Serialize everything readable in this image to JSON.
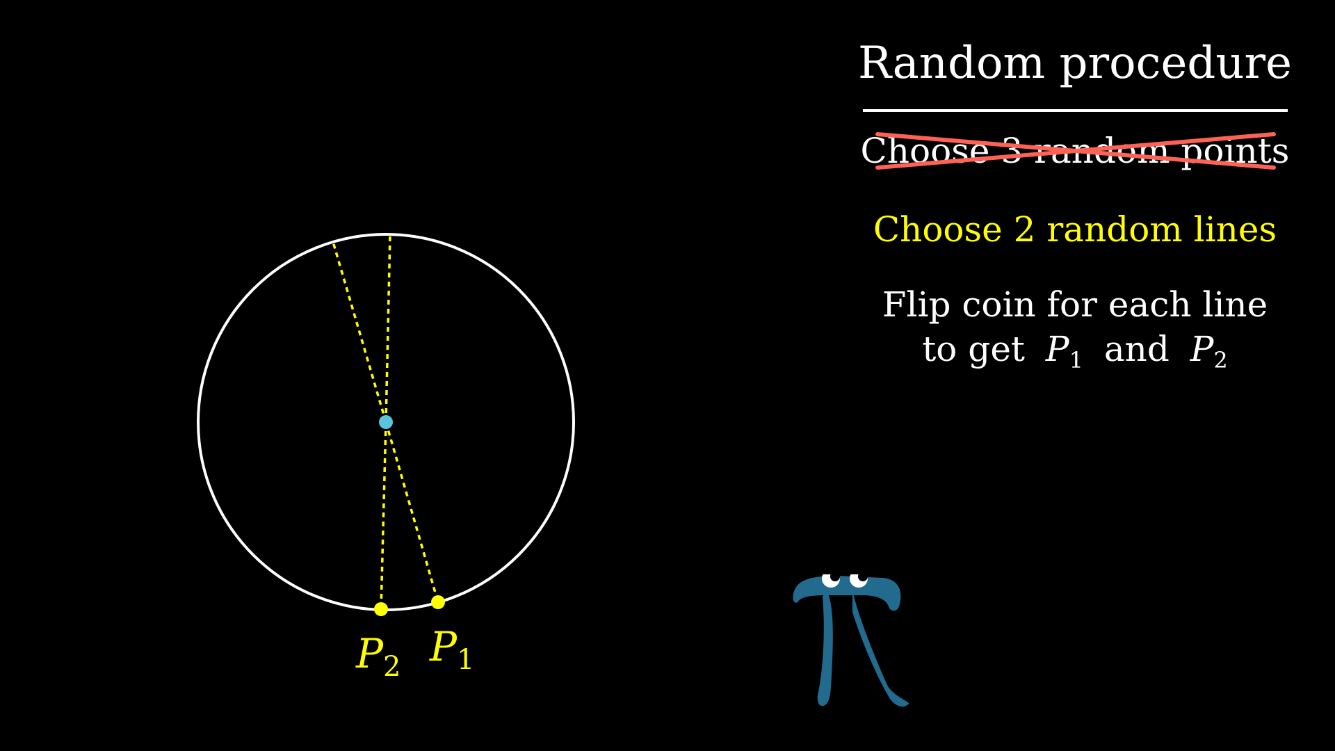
{
  "panel": {
    "title": "Random procedure",
    "crossed_step": "Choose 3 random points",
    "step_lines": "Choose 2 random lines",
    "step_flip_line1": "Flip coin for each line",
    "step_flip_line2_prefix": "to get",
    "step_flip_p1_letter": "P",
    "step_flip_p1_sub": "1",
    "step_flip_and": "and",
    "step_flip_p2_letter": "P",
    "step_flip_p2_sub": "2"
  },
  "diagram": {
    "labels": {
      "p1_letter": "P",
      "p1_sub": "1",
      "p2_letter": "P",
      "p2_sub": "2"
    }
  },
  "colors": {
    "background": "#000000",
    "circle": "#ffffff",
    "text": "#ffffff",
    "highlight": "#ffff00",
    "cross_out": "#fc6255",
    "center": "#58c4dd",
    "pi_creature": "#236b8e"
  },
  "icons": {
    "pi_creature": "pi-creature-icon"
  }
}
